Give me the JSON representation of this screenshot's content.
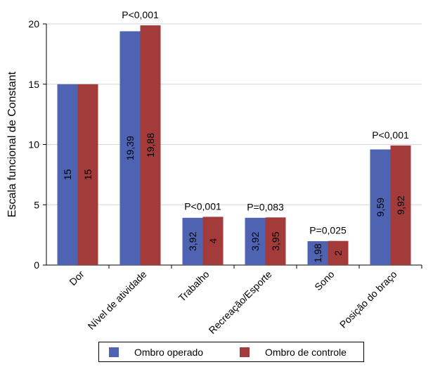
{
  "chart_data": {
    "type": "bar",
    "ylabel": "Escala funcional de Constant",
    "xlabel": "",
    "ylim": [
      0,
      20
    ],
    "yticks": [
      "0",
      "5",
      "10",
      "15",
      "20"
    ],
    "grid": "horizontal",
    "legend_position": "bottom",
    "categories": [
      "Dor",
      "Nível de atividade",
      "Trabalho",
      "Recreação/Esporte",
      "Sono",
      "Posição do braço"
    ],
    "annotations": [
      "",
      "P<0,001",
      "P<0,001",
      "P=0,083",
      "P=0,025",
      "P<0,001"
    ],
    "series": [
      {
        "name": "Ombro operado",
        "color": "#4f63b3",
        "values": [
          15,
          19.39,
          3.92,
          3.92,
          1.98,
          9.59
        ],
        "labels": [
          "15",
          "19,39",
          "3,92",
          "3,92",
          "1,98",
          "9,59"
        ]
      },
      {
        "name": "Ombro de controle",
        "color": "#a33b3b",
        "values": [
          15,
          19.88,
          4,
          3.95,
          2,
          9.92
        ],
        "labels": [
          "15",
          "19,88",
          "4",
          "3,95",
          "2",
          "9,92"
        ]
      }
    ]
  }
}
